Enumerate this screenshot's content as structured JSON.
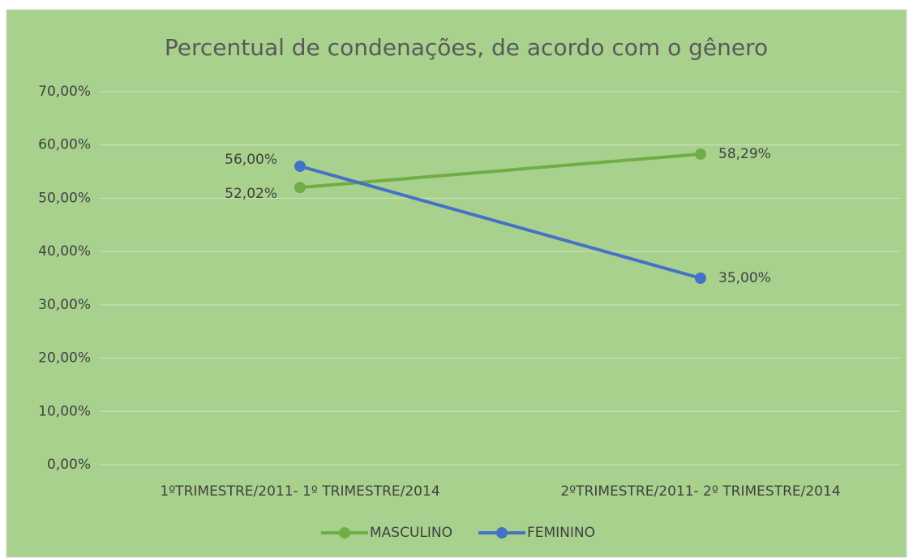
{
  "chart_data": {
    "type": "line",
    "title": "Percentual de condenações,  de acordo com o gênero",
    "categories": [
      "1ºTRIMESTRE/2011- 1º TRIMESTRE/2014",
      "2ºTRIMESTRE/2011- 2º TRIMESTRE/2014"
    ],
    "series": [
      {
        "name": "MASCULINO",
        "color": "#70ad47",
        "values": [
          52.02,
          58.29
        ],
        "value_labels": [
          "52,02%",
          "58,29%"
        ]
      },
      {
        "name": "FEMININO",
        "color": "#4472c4",
        "values": [
          56,
          35
        ],
        "value_labels": [
          "56,00%",
          "35,00%"
        ]
      }
    ],
    "ylim": [
      0,
      70
    ],
    "yticks": [
      {
        "value": 0,
        "label": "0,00%"
      },
      {
        "value": 10,
        "label": "10,00%"
      },
      {
        "value": 20,
        "label": "20,00%"
      },
      {
        "value": 30,
        "label": "30,00%"
      },
      {
        "value": 40,
        "label": "40,00%"
      },
      {
        "value": 50,
        "label": "50,00%"
      },
      {
        "value": 60,
        "label": "60,00%"
      },
      {
        "value": 70,
        "label": "70,00%"
      }
    ],
    "grid": true,
    "legend": "bottom"
  }
}
